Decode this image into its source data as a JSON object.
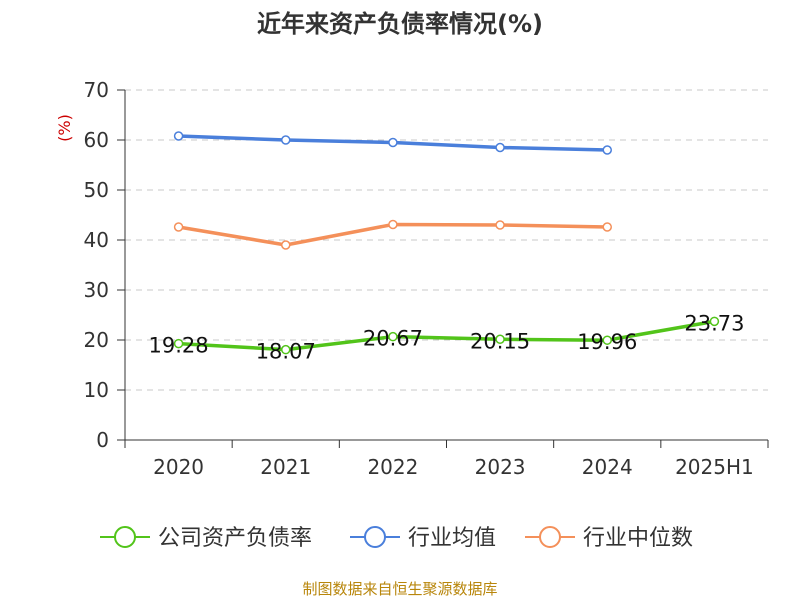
{
  "title": "近年来资产负债率情况(%)",
  "source_note": "制图数据来自恒生聚源数据库",
  "chart_data": {
    "type": "line",
    "title": "近年来资产负债率情况(%)",
    "ylabel": "(%)",
    "xlabel": "",
    "categories": [
      "2020",
      "2021",
      "2022",
      "2023",
      "2024",
      "2025H1"
    ],
    "ylim": [
      0,
      70
    ],
    "yticks": [
      0,
      10,
      20,
      30,
      40,
      50,
      60,
      70
    ],
    "grid": true,
    "legend_position": "bottom",
    "series": [
      {
        "name": "公司资产负债率",
        "color": "#52c41a",
        "values": [
          19.28,
          18.07,
          20.67,
          20.15,
          19.96,
          23.73
        ],
        "show_labels": true
      },
      {
        "name": "行业均值",
        "color": "#4a7fdb",
        "values": [
          60.8,
          60.0,
          59.5,
          58.5,
          58.0,
          null
        ],
        "show_labels": false
      },
      {
        "name": "行业中位数",
        "color": "#f4905a",
        "values": [
          42.6,
          39.0,
          43.1,
          43.0,
          42.6,
          null
        ],
        "show_labels": false
      }
    ],
    "data_labels": [
      "19.28",
      "18.07",
      "20.67",
      "20.15",
      "19.96",
      "23.73"
    ]
  }
}
